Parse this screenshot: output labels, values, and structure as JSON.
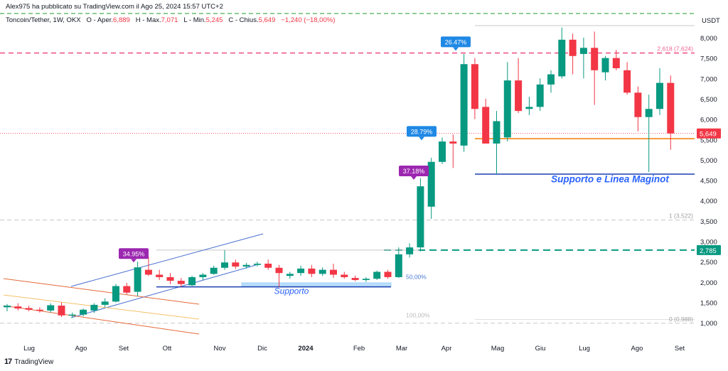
{
  "header": {
    "published": "Alex975 ha pubblicato su TradingView.com il Ago 25, 2024 15:57 UTC+2",
    "symbol": "Toncoin/Tether, 1W, OKX",
    "ohlc": [
      {
        "label": "O - Aper.",
        "value": "6,889"
      },
      {
        "label": "H - Max.",
        "value": "7,071"
      },
      {
        "label": "L - Min.",
        "value": "5,245"
      },
      {
        "label": "C - Chius.",
        "value": "5,649"
      }
    ],
    "change": "−1,240 (−18,00%)"
  },
  "footer": {
    "logo": "TradingView"
  },
  "colors": {
    "up": "#089981",
    "down": "#f23645",
    "accent": "#2962ff",
    "purple": "#9c27b0",
    "blue_label": "#1e88e5"
  },
  "chart_data": {
    "type": "candlestick",
    "y_axis": {
      "unit": "USDT",
      "ticks": [
        "8,000",
        "7,500",
        "7,000",
        "6,500",
        "6,000",
        "5,500",
        "5,000",
        "4,500",
        "4,000",
        "3,500",
        "3,000",
        "2,500",
        "2,000",
        "1,500",
        "1,000"
      ],
      "range": [
        0.75,
        8.5
      ]
    },
    "x_axis": {
      "ticks": [
        "Lug",
        "Ago",
        "Set",
        "Ott",
        "Nov",
        "Dic",
        "2024",
        "Feb",
        "Mar",
        "Apr",
        "Mag",
        "Giu",
        "Lug",
        "Ago",
        "Set"
      ]
    },
    "candles": [
      {
        "o": 1.38,
        "h": 1.46,
        "l": 1.28,
        "c": 1.42
      },
      {
        "o": 1.4,
        "h": 1.48,
        "l": 1.3,
        "c": 1.35
      },
      {
        "o": 1.36,
        "h": 1.42,
        "l": 1.28,
        "c": 1.32
      },
      {
        "o": 1.32,
        "h": 1.38,
        "l": 1.25,
        "c": 1.3
      },
      {
        "o": 1.3,
        "h": 1.48,
        "l": 1.25,
        "c": 1.43
      },
      {
        "o": 1.42,
        "h": 1.5,
        "l": 1.14,
        "c": 1.18
      },
      {
        "o": 1.18,
        "h": 1.25,
        "l": 1.12,
        "c": 1.2
      },
      {
        "o": 1.2,
        "h": 1.35,
        "l": 1.16,
        "c": 1.32
      },
      {
        "o": 1.3,
        "h": 1.48,
        "l": 1.24,
        "c": 1.44
      },
      {
        "o": 1.44,
        "h": 1.6,
        "l": 1.38,
        "c": 1.52
      },
      {
        "o": 1.52,
        "h": 1.95,
        "l": 1.5,
        "c": 1.9
      },
      {
        "o": 1.9,
        "h": 1.98,
        "l": 1.7,
        "c": 1.74
      },
      {
        "o": 1.76,
        "h": 2.5,
        "l": 1.65,
        "c": 2.36
      },
      {
        "o": 2.3,
        "h": 2.62,
        "l": 2.15,
        "c": 2.18
      },
      {
        "o": 2.18,
        "h": 2.3,
        "l": 2.05,
        "c": 2.12
      },
      {
        "o": 2.12,
        "h": 2.22,
        "l": 1.95,
        "c": 2.03
      },
      {
        "o": 2.03,
        "h": 2.1,
        "l": 1.88,
        "c": 1.95
      },
      {
        "o": 1.92,
        "h": 2.15,
        "l": 1.9,
        "c": 2.12
      },
      {
        "o": 2.12,
        "h": 2.22,
        "l": 2.05,
        "c": 2.18
      },
      {
        "o": 2.2,
        "h": 2.4,
        "l": 2.18,
        "c": 2.35
      },
      {
        "o": 2.35,
        "h": 2.78,
        "l": 2.3,
        "c": 2.48
      },
      {
        "o": 2.48,
        "h": 2.55,
        "l": 2.32,
        "c": 2.38
      },
      {
        "o": 2.38,
        "h": 2.47,
        "l": 2.33,
        "c": 2.42
      },
      {
        "o": 2.42,
        "h": 2.5,
        "l": 2.38,
        "c": 2.45
      },
      {
        "o": 2.45,
        "h": 2.55,
        "l": 2.3,
        "c": 2.35
      },
      {
        "o": 2.35,
        "h": 2.42,
        "l": 1.88,
        "c": 2.22
      },
      {
        "o": 2.15,
        "h": 2.25,
        "l": 2.08,
        "c": 2.2
      },
      {
        "o": 2.22,
        "h": 2.4,
        "l": 2.15,
        "c": 2.33
      },
      {
        "o": 2.33,
        "h": 2.42,
        "l": 2.12,
        "c": 2.2
      },
      {
        "o": 2.2,
        "h": 2.36,
        "l": 2.15,
        "c": 2.3
      },
      {
        "o": 2.3,
        "h": 2.45,
        "l": 2.1,
        "c": 2.18
      },
      {
        "o": 2.18,
        "h": 2.25,
        "l": 2.08,
        "c": 2.12
      },
      {
        "o": 2.1,
        "h": 2.16,
        "l": 2.02,
        "c": 2.05
      },
      {
        "o": 2.05,
        "h": 2.12,
        "l": 2.0,
        "c": 2.08
      },
      {
        "o": 2.08,
        "h": 2.28,
        "l": 2.05,
        "c": 2.25
      },
      {
        "o": 2.25,
        "h": 2.3,
        "l": 2.08,
        "c": 2.12
      },
      {
        "o": 2.12,
        "h": 2.85,
        "l": 2.1,
        "c": 2.68
      },
      {
        "o": 2.68,
        "h": 2.95,
        "l": 2.6,
        "c": 2.85
      },
      {
        "o": 2.85,
        "h": 4.55,
        "l": 2.75,
        "c": 4.35
      },
      {
        "o": 3.85,
        "h": 5.05,
        "l": 3.55,
        "c": 4.95
      },
      {
        "o": 4.95,
        "h": 5.55,
        "l": 4.9,
        "c": 5.45
      },
      {
        "o": 5.45,
        "h": 5.62,
        "l": 4.8,
        "c": 5.4
      },
      {
        "o": 5.35,
        "h": 7.6,
        "l": 5.2,
        "c": 7.35
      },
      {
        "o": 7.35,
        "h": 7.5,
        "l": 6.0,
        "c": 6.25
      },
      {
        "o": 6.3,
        "h": 6.5,
        "l": 5.4,
        "c": 5.4
      },
      {
        "o": 5.4,
        "h": 6.2,
        "l": 4.65,
        "c": 5.95
      },
      {
        "o": 5.55,
        "h": 7.4,
        "l": 5.45,
        "c": 6.95
      },
      {
        "o": 6.95,
        "h": 7.5,
        "l": 6.15,
        "c": 6.2
      },
      {
        "o": 6.25,
        "h": 6.55,
        "l": 6.1,
        "c": 6.3
      },
      {
        "o": 6.3,
        "h": 7.0,
        "l": 6.2,
        "c": 6.85
      },
      {
        "o": 6.85,
        "h": 7.2,
        "l": 6.65,
        "c": 7.1
      },
      {
        "o": 7.05,
        "h": 8.25,
        "l": 7.0,
        "c": 7.95
      },
      {
        "o": 7.95,
        "h": 8.1,
        "l": 7.1,
        "c": 7.55
      },
      {
        "o": 7.6,
        "h": 8.0,
        "l": 7.0,
        "c": 7.75
      },
      {
        "o": 7.75,
        "h": 8.15,
        "l": 6.35,
        "c": 7.2
      },
      {
        "o": 7.15,
        "h": 7.55,
        "l": 6.95,
        "c": 7.5
      },
      {
        "o": 7.5,
        "h": 7.7,
        "l": 7.2,
        "c": 7.25
      },
      {
        "o": 7.2,
        "h": 7.4,
        "l": 6.6,
        "c": 6.65
      },
      {
        "o": 6.65,
        "h": 6.8,
        "l": 5.7,
        "c": 6.05
      },
      {
        "o": 6.05,
        "h": 6.6,
        "l": 4.7,
        "c": 6.25
      },
      {
        "o": 6.25,
        "h": 7.25,
        "l": 6.1,
        "c": 6.89
      },
      {
        "o": 6.889,
        "h": 7.071,
        "l": 5.245,
        "c": 5.649
      }
    ],
    "price_labels": [
      {
        "text": "5,649",
        "y": 5.649,
        "color": "#f23645"
      },
      {
        "text": "2,785",
        "y": 2.785,
        "color": "#089981"
      }
    ],
    "fib_levels": [
      {
        "text": "2,618 (7,624)",
        "y": 7.624,
        "color": "#f06292"
      },
      {
        "text": "1 (3,522)",
        "y": 3.522,
        "color": "#9e9e9e"
      },
      {
        "text": "0 (0,988)",
        "y": 0.988,
        "color": "#9e9e9e"
      },
      {
        "text": "50,00%",
        "y": 2.02,
        "color": "#4a7bd0"
      },
      {
        "text": "100,00%",
        "y": 1.08,
        "color": "#bbbbbb"
      }
    ],
    "annotations": [
      {
        "text": "34.95%",
        "color": "#9c27b0",
        "y": 2.55
      },
      {
        "text": "37.18%",
        "color": "#9c27b0",
        "y": 4.58
      },
      {
        "text": "28.79%",
        "color": "#1e88e5",
        "y": 5.55
      },
      {
        "text": "26.47%",
        "color": "#1e88e5",
        "y": 7.75
      }
    ],
    "zone_labels": [
      {
        "text": "Supporto e Linea Maginot",
        "y": 4.45
      },
      {
        "text": "Supporto",
        "y": 1.85
      }
    ]
  }
}
